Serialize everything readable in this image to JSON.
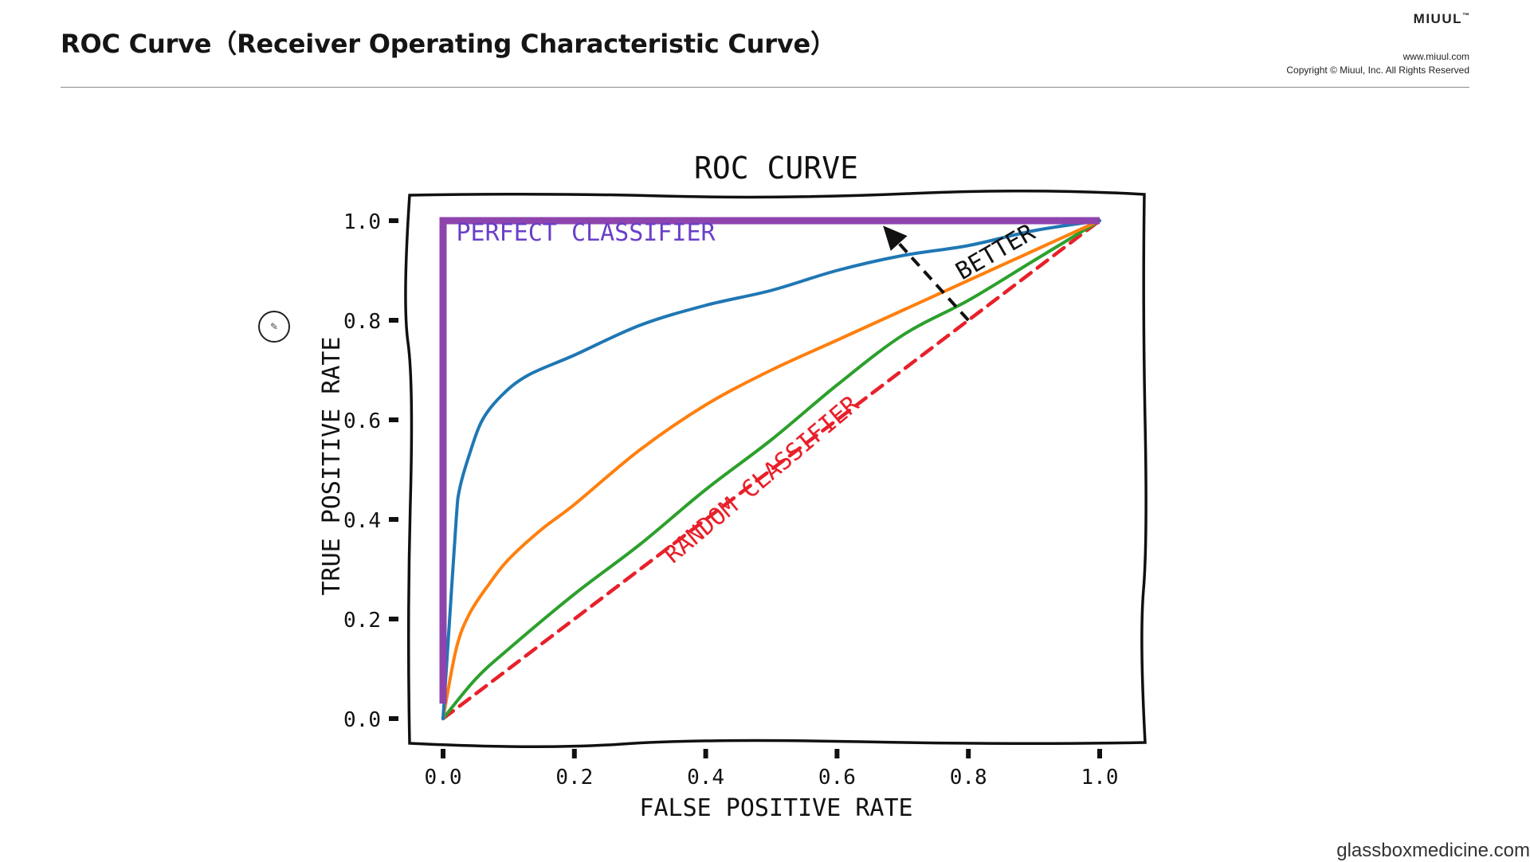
{
  "header": {
    "title": "ROC Curve（Receiver Operating Characteristic Curve）",
    "brand": "MIUUL",
    "brand_mark": "™",
    "website": "www.miuul.com",
    "copyright": "Copyright © Miuul, Inc. All Rights Reserved"
  },
  "footer": {
    "credit": "glassboxmedicine.com"
  },
  "cursor": {
    "icon": "pen-circle-icon",
    "glyph": "✎"
  },
  "colors": {
    "perfect": "#8e44ad",
    "perfect_label": "#6a3fc9",
    "random": "#e8202a",
    "blue": "#1f77b4",
    "orange": "#ff7f0e",
    "green": "#2ca02c",
    "ink": "#111111"
  },
  "chart_data": {
    "type": "line",
    "title": "ROC CURVE",
    "xlabel": "FALSE POSITIVE RATE",
    "ylabel": "TRUE POSITIVE RATE",
    "xlim": [
      0.0,
      1.0
    ],
    "ylim": [
      0.0,
      1.0
    ],
    "xticks": [
      "0.0",
      "0.2",
      "0.4",
      "0.6",
      "0.8",
      "1.0"
    ],
    "yticks": [
      "0.0",
      "0.2",
      "0.4",
      "0.6",
      "0.8",
      "1.0"
    ],
    "grid": false,
    "legend": "none",
    "series": [
      {
        "key": "perfect",
        "x": [
          0.0,
          0.0,
          1.0
        ],
        "y": [
          0.03,
          1.0,
          1.0
        ]
      },
      {
        "key": "blue",
        "x": [
          0.0,
          0.01,
          0.02,
          0.025,
          0.04,
          0.06,
          0.09,
          0.13,
          0.2,
          0.3,
          0.4,
          0.5,
          0.6,
          0.7,
          0.8,
          0.9,
          1.0
        ],
        "y": [
          0.0,
          0.2,
          0.4,
          0.46,
          0.53,
          0.6,
          0.65,
          0.69,
          0.73,
          0.79,
          0.83,
          0.86,
          0.9,
          0.93,
          0.95,
          0.98,
          1.0
        ]
      },
      {
        "key": "orange",
        "x": [
          0.0,
          0.02,
          0.04,
          0.07,
          0.1,
          0.15,
          0.2,
          0.3,
          0.4,
          0.5,
          0.6,
          0.7,
          0.8,
          0.9,
          1.0
        ],
        "y": [
          0.0,
          0.14,
          0.21,
          0.27,
          0.32,
          0.38,
          0.43,
          0.54,
          0.63,
          0.7,
          0.76,
          0.82,
          0.88,
          0.94,
          1.0
        ]
      },
      {
        "key": "green",
        "x": [
          0.0,
          0.05,
          0.1,
          0.2,
          0.3,
          0.4,
          0.5,
          0.6,
          0.7,
          0.8,
          0.9,
          1.0
        ],
        "y": [
          0.0,
          0.08,
          0.14,
          0.25,
          0.35,
          0.46,
          0.56,
          0.67,
          0.77,
          0.84,
          0.92,
          1.0
        ]
      },
      {
        "key": "random",
        "x": [
          0.0,
          1.0
        ],
        "y": [
          0.0,
          1.0
        ]
      }
    ],
    "annotations": [
      {
        "text": "PERFECT CLASSIFIER",
        "x": 0.02,
        "y": 0.96,
        "color_key": "perfect_label",
        "rotate": 0
      },
      {
        "text": "RANDOM CLASSIFIER",
        "x": 0.35,
        "y": 0.31,
        "color_key": "random",
        "rotate": -40
      },
      {
        "text": "BETTER",
        "x": 0.79,
        "y": 0.88,
        "color_key": "ink",
        "rotate": -30
      }
    ],
    "arrow": {
      "from": [
        0.8,
        0.8
      ],
      "to": [
        0.67,
        0.99
      ]
    }
  }
}
